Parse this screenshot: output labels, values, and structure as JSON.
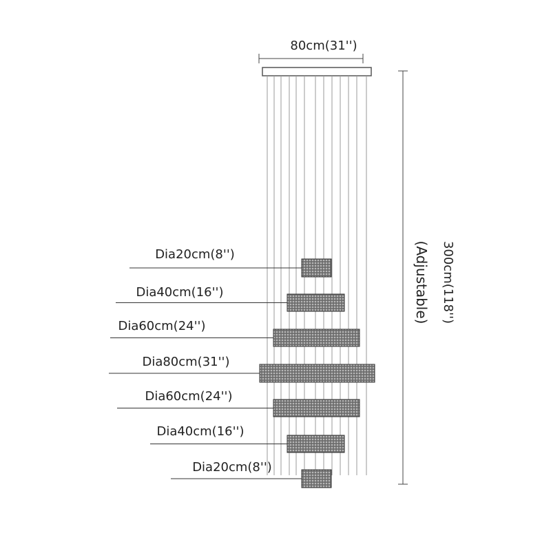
{
  "dimensions": {
    "width": "80cm(31'')",
    "height": "300cm(118'')",
    "note": "(Adjustable)"
  },
  "rings": [
    {
      "label": "Dia20cm(8'')"
    },
    {
      "label": "Dia40cm(16'')"
    },
    {
      "label": "Dia60cm(24'')"
    },
    {
      "label": "Dia80cm(31'')"
    },
    {
      "label": "Dia60cm(24'')"
    },
    {
      "label": "Dia40cm(16'')"
    },
    {
      "label": "Dia20cm(8'')"
    }
  ]
}
